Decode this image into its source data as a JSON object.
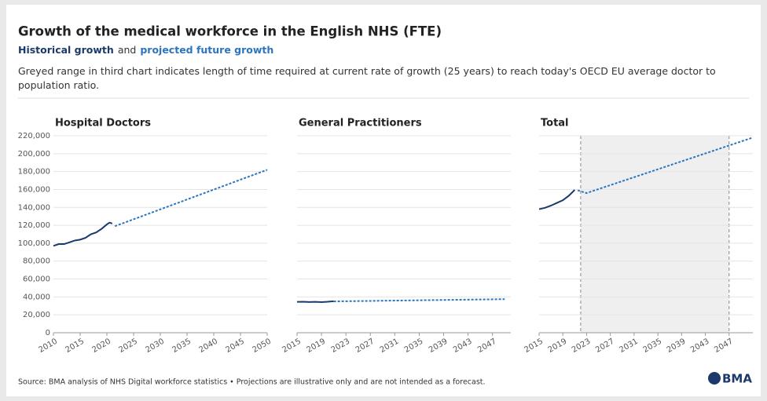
{
  "title": "Growth of the medical workforce in the English NHS (FTE)",
  "subtitle": {
    "historical": "Historical growth",
    "joiner": "and",
    "projected": "projected future growth"
  },
  "note": "Greyed range in third chart indicates length of time required at current rate of growth (25 years) to reach today's OECD EU average doctor to population ratio.",
  "source": "Source: BMA analysis of NHS Digital workforce statistics • Projections are illustrative only and are not intended as a forecast.",
  "logo": "BMA",
  "chart_data": [
    {
      "type": "line",
      "title": "Hospital Doctors",
      "xlim": [
        2010,
        2050
      ],
      "xticks": [
        2010,
        2015,
        2020,
        2025,
        2030,
        2035,
        2040,
        2045,
        2050
      ],
      "ylim": [
        0,
        220000
      ],
      "yticks": [
        0,
        {
          "value": 20000,
          "label": "20,000"
        },
        {
          "value": 40000,
          "label": "40,000"
        },
        {
          "value": 60000,
          "label": "60,000"
        },
        {
          "value": 80000,
          "label": "80,000"
        },
        {
          "value": 100000,
          "label": "100,000"
        },
        {
          "value": 120000,
          "label": "120,000"
        },
        {
          "value": 140000,
          "label": "140,000"
        },
        {
          "value": 160000,
          "label": "160,000"
        },
        {
          "value": 180000,
          "label": "180,000"
        },
        {
          "value": 200000,
          "label": "200,000"
        },
        {
          "value": 220000,
          "label": "220,000"
        }
      ],
      "grid": true,
      "series": [
        {
          "color": "#1b3a6b",
          "style": "solid",
          "x": [
            2010,
            2011,
            2012,
            2013,
            2014,
            2015,
            2016,
            2017,
            2018,
            2019,
            2020,
            2020.5,
            2021
          ],
          "values": [
            97000,
            99000,
            99000,
            101000,
            103000,
            104000,
            106000,
            110000,
            112000,
            116000,
            121000,
            123000,
            122000
          ]
        },
        {
          "color": "#2b75c0",
          "style": "dashed",
          "x": [
            2021.5,
            2050
          ],
          "values": [
            119000,
            182000
          ]
        }
      ]
    },
    {
      "type": "line",
      "title": "General Practitioners",
      "xlim": [
        2015,
        2050
      ],
      "xticks": [
        2015,
        2019,
        2023,
        2027,
        2031,
        2035,
        2039,
        2043,
        2047
      ],
      "ylim": [
        0,
        220000
      ],
      "grid": true,
      "series": [
        {
          "color": "#1b3a6b",
          "style": "solid",
          "x": [
            2015,
            2016,
            2017,
            2018,
            2019,
            2020,
            2021
          ],
          "values": [
            34500,
            34600,
            34300,
            34500,
            34200,
            34600,
            35200
          ]
        },
        {
          "color": "#2b75c0",
          "style": "dashed",
          "x": [
            2021,
            2049
          ],
          "values": [
            35000,
            37500
          ]
        }
      ]
    },
    {
      "type": "line",
      "title": "Total",
      "xlim": [
        2015,
        2051
      ],
      "xticks": [
        2015,
        2019,
        2023,
        2027,
        2031,
        2035,
        2039,
        2043,
        2047
      ],
      "ylim": [
        0,
        220000
      ],
      "grid": true,
      "range": [
        2022,
        2047
      ],
      "series": [
        {
          "color": "#1b3a6b",
          "style": "solid",
          "x": [
            2015,
            2016,
            2017,
            2018,
            2019,
            2020,
            2021
          ],
          "values": [
            138000,
            139500,
            142000,
            145000,
            148000,
            153000,
            159500
          ]
        },
        {
          "color": "#2b75c0",
          "style": "dashed",
          "x": [
            2021.5,
            2023,
            2051
          ],
          "values": [
            159000,
            156000,
            218000
          ]
        }
      ]
    }
  ]
}
